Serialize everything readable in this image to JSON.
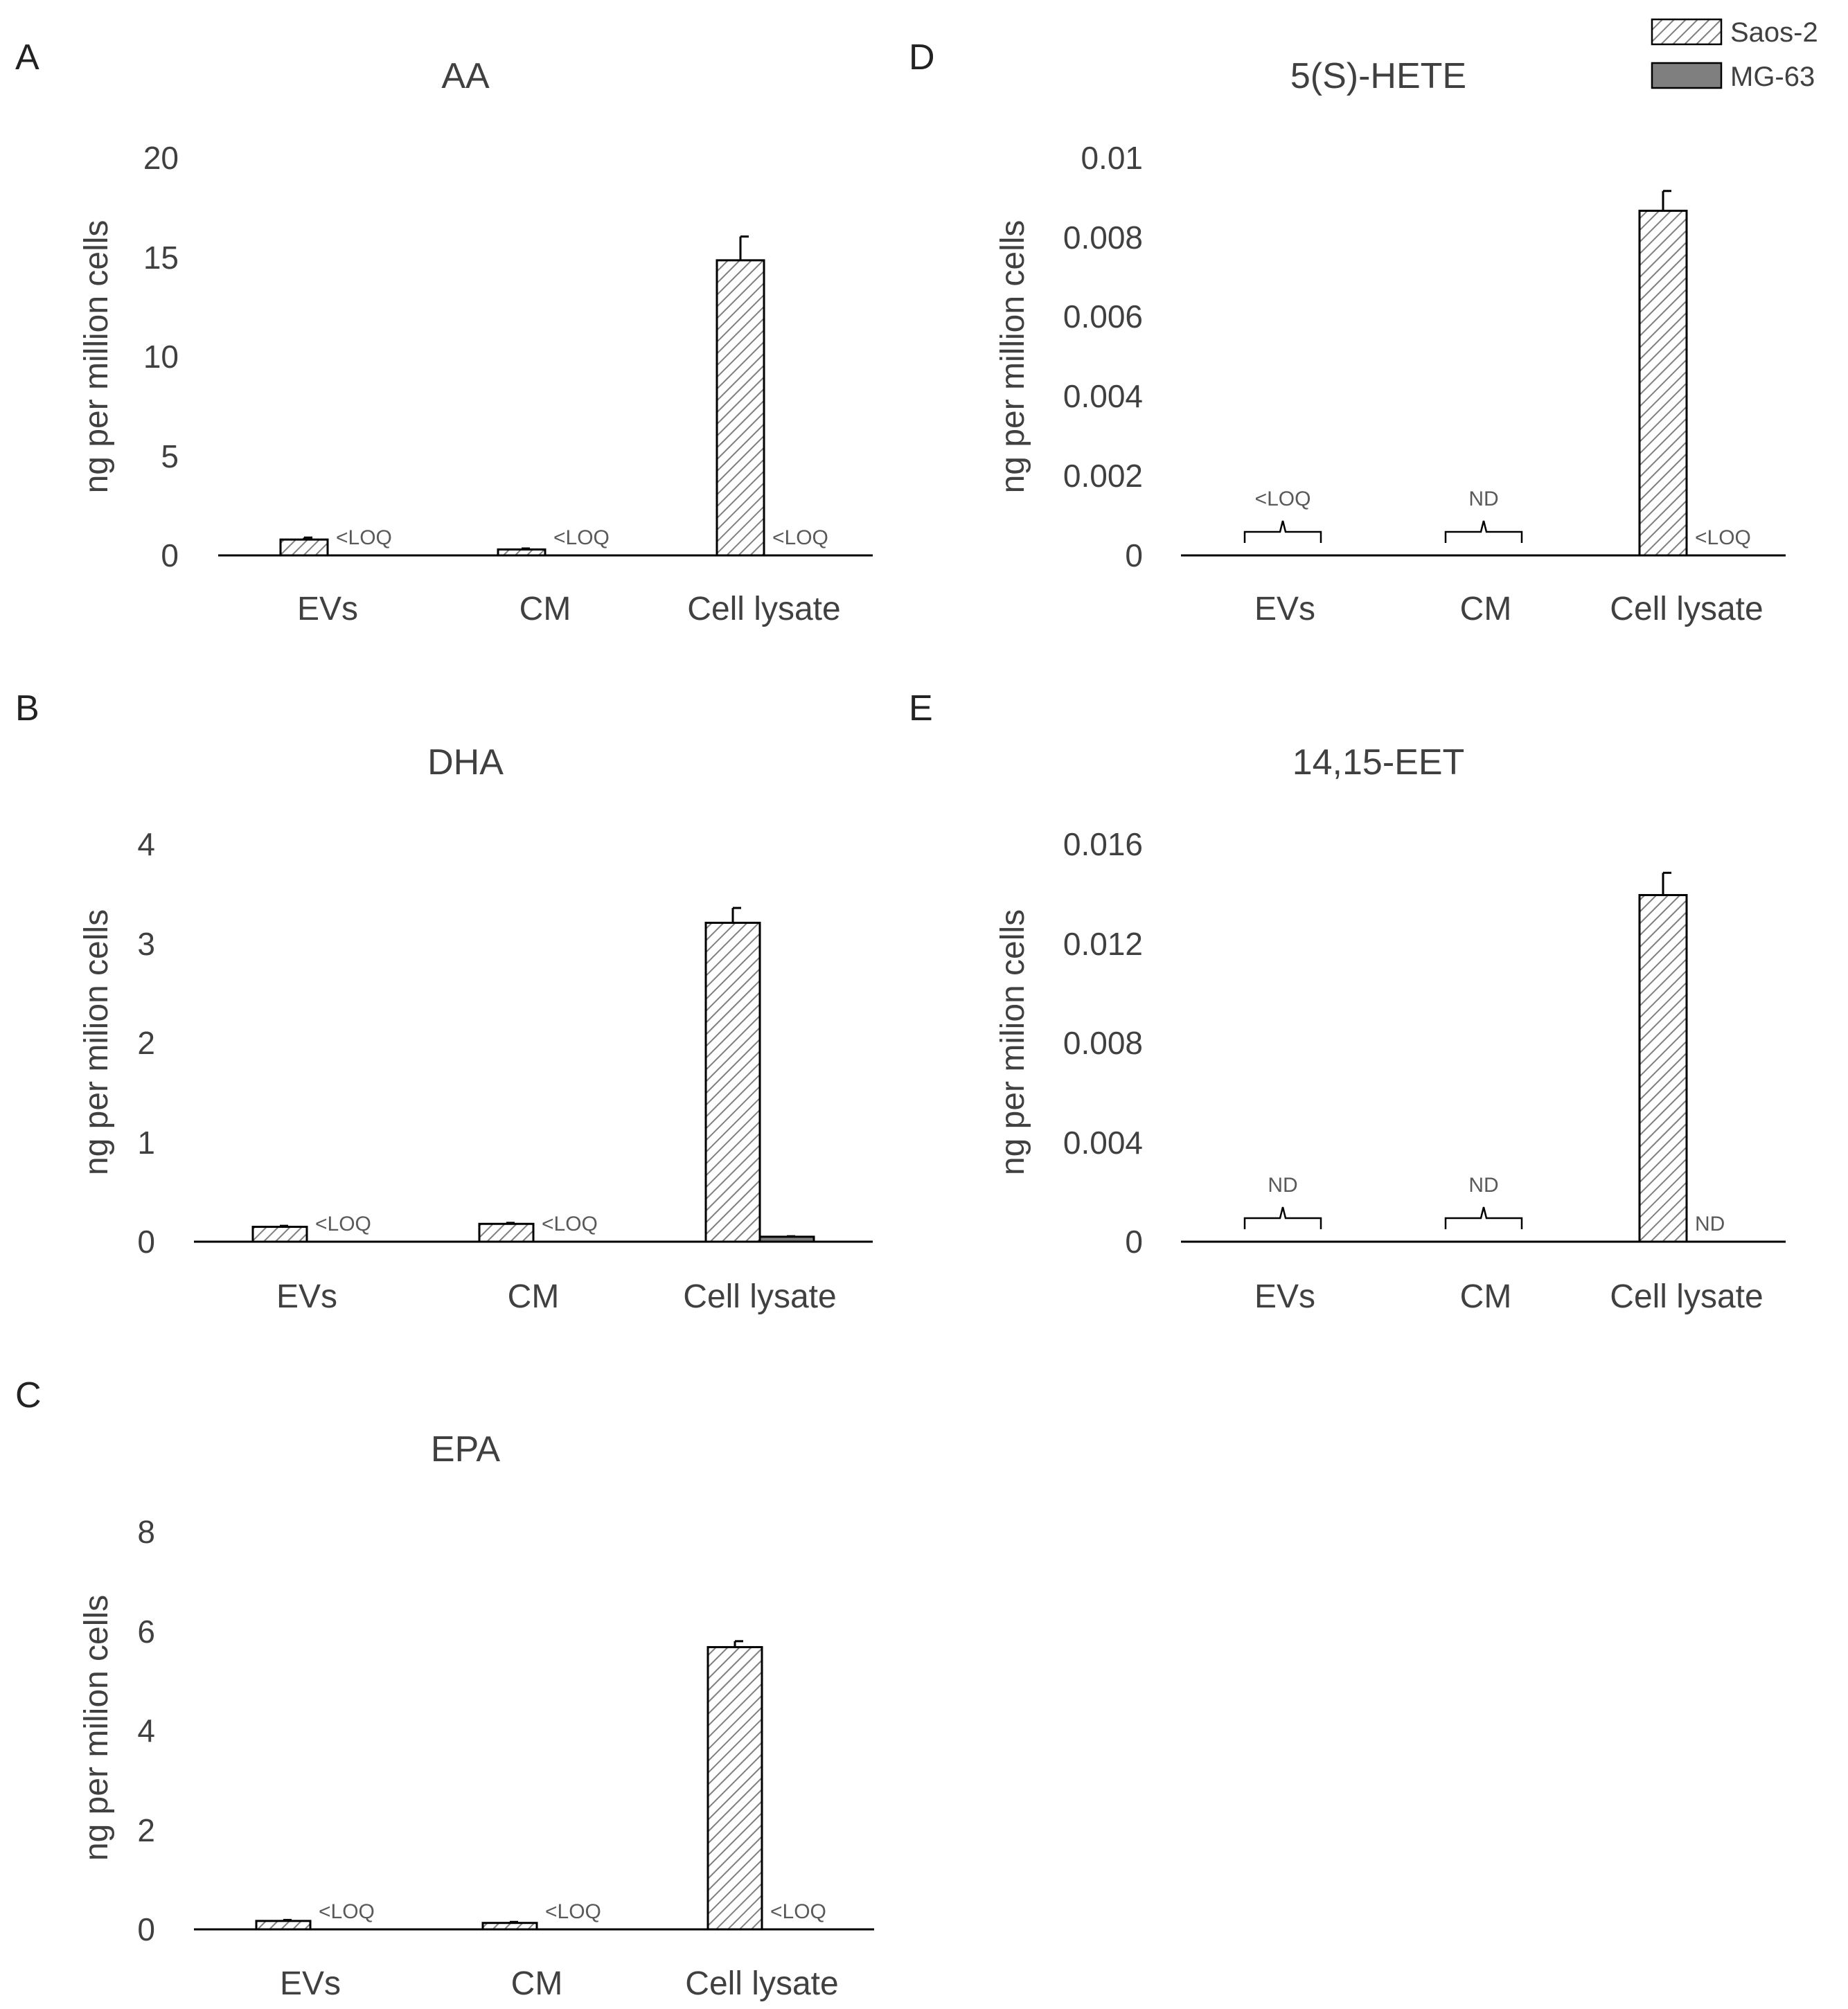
{
  "legend": [
    {
      "name": "Saos-2",
      "pattern": "hatch"
    },
    {
      "name": "MG-63",
      "pattern": "solid-gray"
    }
  ],
  "colors": {
    "mg63_fill": "#7f7f7f",
    "axis": "#000000",
    "text": "#404040"
  },
  "chart_data": [
    {
      "panel": "A",
      "type": "bar",
      "title": "AA",
      "ylabel": "ng per million cells",
      "ylim": [
        0,
        20
      ],
      "yticks": [
        "0",
        "5",
        "10",
        "15",
        "20"
      ],
      "categories": [
        "EVs",
        "CM",
        "Cell lysate"
      ],
      "series": [
        {
          "name": "Saos-2",
          "values": [
            0.8,
            0.3,
            14.9
          ],
          "errors": [
            0.1,
            0.05,
            1.2
          ]
        },
        {
          "name": "MG-63",
          "values": [
            0,
            0,
            0
          ],
          "errors": [
            0,
            0,
            0
          ]
        }
      ],
      "annotations": [
        {
          "category": 0,
          "text": "<LOQ",
          "style": "label"
        },
        {
          "category": 1,
          "text": "<LOQ",
          "style": "label"
        },
        {
          "category": 2,
          "text": "<LOQ",
          "style": "label"
        }
      ]
    },
    {
      "panel": "B",
      "type": "bar",
      "title": "DHA",
      "ylabel": "ng per milion cells",
      "ylim": [
        0,
        4
      ],
      "yticks": [
        "0",
        "1",
        "2",
        "3",
        "4"
      ],
      "categories": [
        "EVs",
        "CM",
        "Cell lysate"
      ],
      "series": [
        {
          "name": "Saos-2",
          "values": [
            0.15,
            0.18,
            3.22
          ],
          "errors": [
            0.01,
            0.01,
            0.15
          ]
        },
        {
          "name": "MG-63",
          "values": [
            0,
            0,
            0.05
          ],
          "errors": [
            0,
            0,
            0.005
          ]
        }
      ],
      "annotations": [
        {
          "category": 0,
          "text": "<LOQ",
          "style": "label"
        },
        {
          "category": 1,
          "text": "<LOQ",
          "style": "label"
        }
      ]
    },
    {
      "panel": "C",
      "type": "bar",
      "title": "EPA",
      "ylabel": "ng per milion cells",
      "ylim": [
        0,
        8
      ],
      "yticks": [
        "0",
        "2",
        "4",
        "6",
        "8"
      ],
      "categories": [
        "EVs",
        "CM",
        "Cell lysate"
      ],
      "series": [
        {
          "name": "Saos-2",
          "values": [
            0.17,
            0.13,
            5.7
          ],
          "errors": [
            0.02,
            0.02,
            0.12
          ]
        },
        {
          "name": "MG-63",
          "values": [
            0,
            0,
            0
          ],
          "errors": [
            0,
            0,
            0
          ]
        }
      ],
      "annotations": [
        {
          "category": 0,
          "text": "<LOQ",
          "style": "label"
        },
        {
          "category": 1,
          "text": "<LOQ",
          "style": "label"
        },
        {
          "category": 2,
          "text": "<LOQ",
          "style": "label"
        }
      ]
    },
    {
      "panel": "D",
      "type": "bar",
      "title": "5(S)-HETE",
      "ylabel": "ng per million cells",
      "ylim": [
        0,
        0.01
      ],
      "yticks": [
        "0",
        "0.002",
        "0.004",
        "0.006",
        "0.008",
        "0.01"
      ],
      "categories": [
        "EVs",
        "CM",
        "Cell lysate"
      ],
      "series": [
        {
          "name": "Saos-2",
          "values": [
            0,
            0,
            0.0087
          ],
          "errors": [
            0,
            0,
            0.0005
          ]
        },
        {
          "name": "MG-63",
          "values": [
            0,
            0,
            0
          ],
          "errors": [
            0,
            0,
            0
          ]
        }
      ],
      "annotations": [
        {
          "category": 0,
          "text": "<LOQ",
          "style": "brace"
        },
        {
          "category": 1,
          "text": "ND",
          "style": "brace"
        },
        {
          "category": 2,
          "text": "<LOQ",
          "style": "label"
        }
      ]
    },
    {
      "panel": "E",
      "type": "bar",
      "title": "14,15-EET",
      "ylabel": "ng per milion cells",
      "ylim": [
        0,
        0.016
      ],
      "yticks": [
        "0",
        "0.004",
        "0.008",
        "0.012",
        "0.016"
      ],
      "categories": [
        "EVs",
        "CM",
        "Cell lysate"
      ],
      "series": [
        {
          "name": "Saos-2",
          "values": [
            0,
            0,
            0.014
          ],
          "errors": [
            0,
            0,
            0.0009
          ]
        },
        {
          "name": "MG-63",
          "values": [
            0,
            0,
            0
          ],
          "errors": [
            0,
            0,
            0
          ]
        }
      ],
      "annotations": [
        {
          "category": 0,
          "text": "ND",
          "style": "brace"
        },
        {
          "category": 1,
          "text": "ND",
          "style": "brace"
        },
        {
          "category": 2,
          "text": "ND",
          "style": "label"
        }
      ]
    }
  ]
}
